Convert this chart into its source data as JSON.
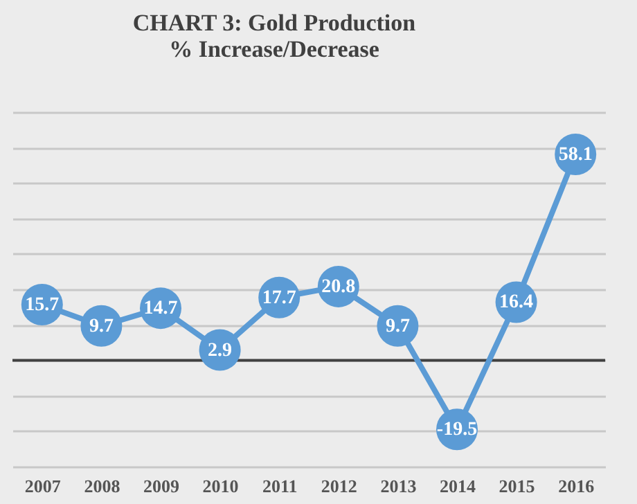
{
  "chart_data": {
    "type": "line",
    "title": "CHART 3: Gold Production",
    "subtitle": "% Increase/Decrease",
    "categories": [
      "2007",
      "2008",
      "2009",
      "2010",
      "2011",
      "2012",
      "2013",
      "2014",
      "2015",
      "2016"
    ],
    "values": [
      15.7,
      9.7,
      14.7,
      2.9,
      17.7,
      20.8,
      9.7,
      -19.5,
      16.4,
      58.1
    ],
    "color": "#5b9bd5",
    "marker": "circle",
    "data_labels": true,
    "grid": "y",
    "tick_labels": "x",
    "ylim": [
      -30,
      70
    ],
    "yticks": [
      -30,
      -20,
      -10,
      0,
      10,
      20,
      30,
      40,
      50,
      60,
      70
    ],
    "ref_lines": [
      {
        "axis": "y",
        "value": 0,
        "color": "#404040"
      }
    ]
  }
}
